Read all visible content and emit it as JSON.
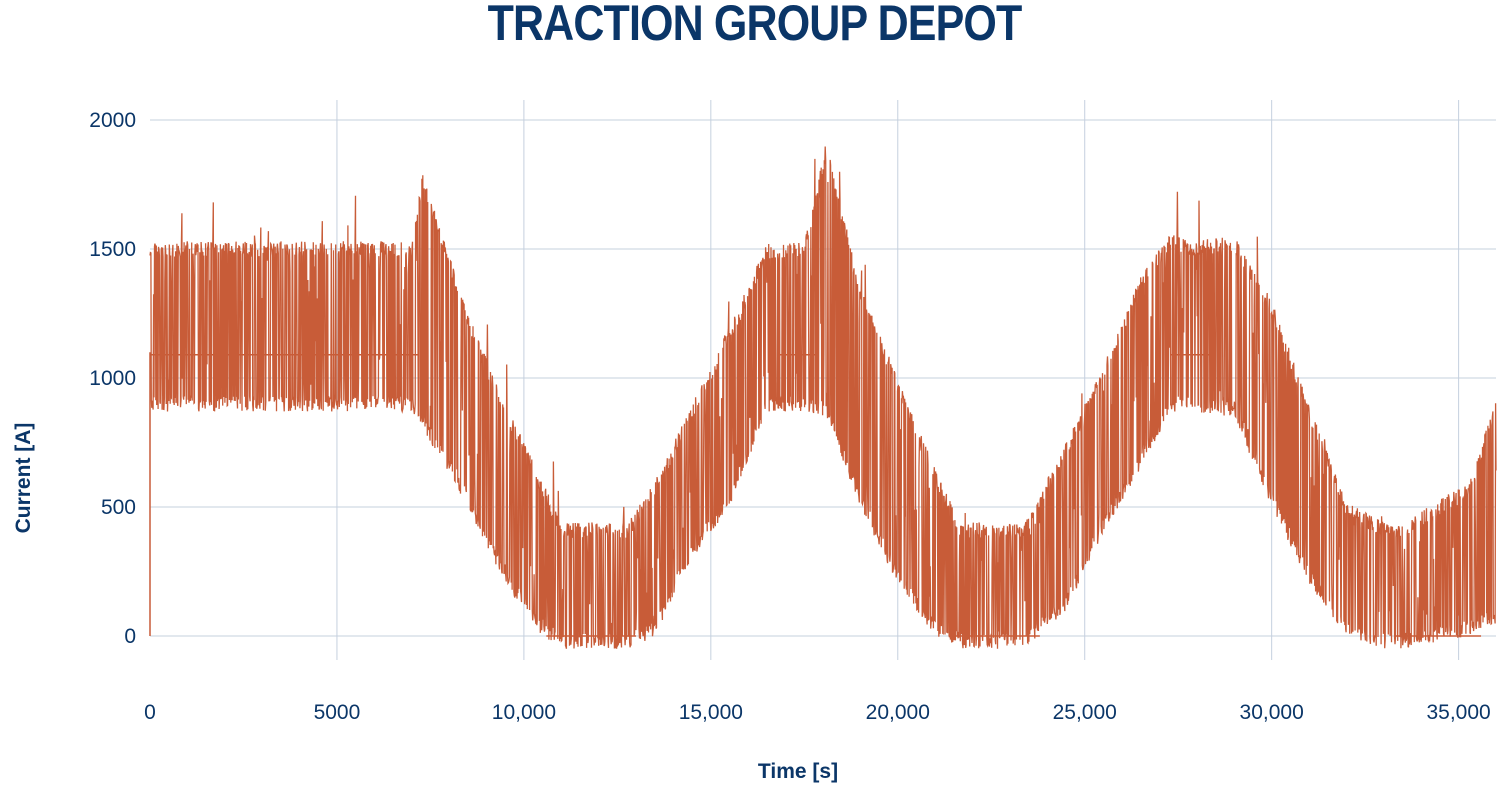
{
  "chart_data": {
    "type": "line",
    "title": "TRACTION GROUP DEPOT",
    "xlabel": "Time [s]",
    "ylabel": "Current [A]",
    "xlim": [
      0,
      36000
    ],
    "ylim": [
      0,
      2000
    ],
    "x_ticks": [
      0,
      5000,
      10000,
      15000,
      20000,
      25000,
      30000,
      35000
    ],
    "x_tick_labels": [
      "0",
      "5000",
      "10,000",
      "15,000",
      "20,000",
      "25,000",
      "30,000",
      "35,000"
    ],
    "y_ticks": [
      0,
      500,
      1000,
      1500,
      2000
    ],
    "y_tick_labels": [
      "0",
      "500",
      "1000",
      "1500",
      "2000"
    ],
    "grid": true,
    "legend": "none",
    "series_color": "#c85c38",
    "grid_color": "#c5d0de",
    "text_color": "#0b3668",
    "envelope": {
      "description_hidden": true,
      "x": [
        0,
        7000,
        7300,
        8500,
        9500,
        10500,
        11000,
        12800,
        13500,
        14500,
        15500,
        16500,
        17000,
        17500,
        18100,
        19000,
        20000,
        21000,
        21700,
        23400,
        24500,
        25500,
        26500,
        27300,
        27800,
        29000,
        30000,
        31000,
        32000,
        33000,
        33500,
        35300,
        36000
      ],
      "upper": [
        1530,
        1530,
        1800,
        1250,
        900,
        600,
        440,
        440,
        600,
        900,
        1200,
        1520,
        1520,
        1530,
        1920,
        1350,
        1000,
        650,
        440,
        440,
        750,
        1050,
        1400,
        1560,
        1530,
        1550,
        1300,
        900,
        520,
        440,
        440,
        600,
        920
      ],
      "lower": [
        870,
        870,
        800,
        500,
        200,
        0,
        -50,
        -50,
        0,
        300,
        500,
        870,
        870,
        870,
        850,
        500,
        200,
        0,
        -50,
        -50,
        100,
        400,
        650,
        870,
        870,
        850,
        500,
        200,
        0,
        -50,
        -50,
        0,
        50
      ]
    },
    "baseline_levels": [
      {
        "x_range": [
          0,
          7200
        ],
        "value": 1090
      },
      {
        "x_range": [
          10600,
          13000
        ],
        "value": 0
      },
      {
        "x_range": [
          16800,
          17800
        ],
        "value": 1090
      },
      {
        "x_range": [
          21500,
          23800
        ],
        "value": 0
      },
      {
        "x_range": [
          27300,
          28500
        ],
        "value": 1090
      },
      {
        "x_range": [
          33300,
          35600
        ],
        "value": 0
      }
    ]
  }
}
